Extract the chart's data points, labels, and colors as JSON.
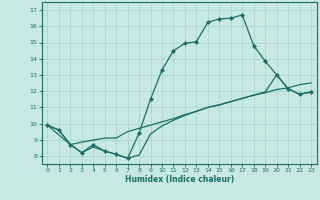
{
  "xlabel": "Humidex (Indice chaleur)",
  "xlim": [
    -0.5,
    23.5
  ],
  "ylim": [
    7.5,
    17.5
  ],
  "xticks": [
    0,
    1,
    2,
    3,
    4,
    5,
    6,
    7,
    8,
    9,
    10,
    11,
    12,
    13,
    14,
    15,
    16,
    17,
    18,
    19,
    20,
    21,
    22,
    23
  ],
  "yticks": [
    8,
    9,
    10,
    11,
    12,
    13,
    14,
    15,
    16,
    17
  ],
  "bg_color": "#c8e8e4",
  "grid_color": "#aad4d0",
  "line_color": "#1a6e6a",
  "line1_x": [
    0,
    1,
    2,
    3,
    4,
    5,
    6,
    7,
    8,
    9,
    10,
    11,
    12,
    13,
    14,
    15,
    16,
    17,
    18,
    19,
    20,
    21,
    22,
    23
  ],
  "line1_y": [
    9.9,
    9.6,
    8.7,
    8.2,
    8.7,
    8.3,
    8.1,
    7.85,
    9.4,
    11.5,
    13.3,
    14.5,
    14.95,
    15.05,
    16.25,
    16.45,
    16.5,
    16.7,
    14.8,
    13.85,
    13.0,
    12.15,
    11.8,
    11.95
  ],
  "line2_x": [
    0,
    2,
    3,
    5,
    6,
    7,
    8,
    9,
    10,
    11,
    12,
    13,
    14,
    15,
    16,
    17,
    18,
    19,
    20,
    21,
    22,
    23
  ],
  "line2_y": [
    9.9,
    8.7,
    8.85,
    9.1,
    9.1,
    9.5,
    9.7,
    9.9,
    10.1,
    10.3,
    10.55,
    10.75,
    11.0,
    11.15,
    11.35,
    11.55,
    11.75,
    11.9,
    12.1,
    12.2,
    12.4,
    12.5
  ],
  "line3_x": [
    0,
    1,
    2,
    3,
    4,
    5,
    6,
    7,
    8,
    9,
    10,
    11,
    12,
    13,
    14,
    15,
    16,
    17,
    18,
    19,
    20,
    21,
    22,
    23
  ],
  "line3_y": [
    9.9,
    9.6,
    8.7,
    8.2,
    8.55,
    8.3,
    8.1,
    7.85,
    8.05,
    9.35,
    9.85,
    10.2,
    10.5,
    10.75,
    11.0,
    11.15,
    11.35,
    11.55,
    11.75,
    11.95,
    13.0,
    12.15,
    11.8,
    11.95
  ]
}
